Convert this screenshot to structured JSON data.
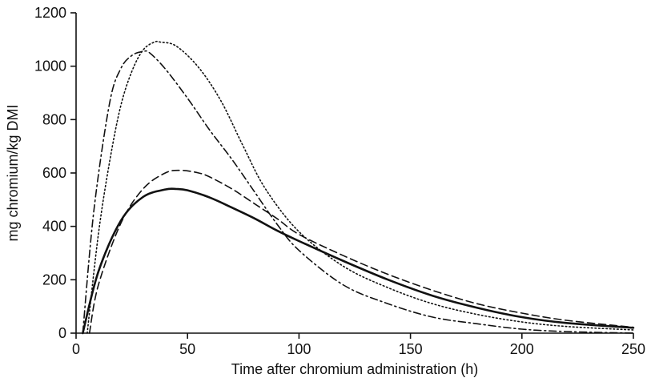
{
  "chart_data": {
    "type": "line",
    "title": "",
    "xlabel": "Time after chromium administration (h)",
    "ylabel": "mg chromium/kg DMI",
    "xlim": [
      0,
      250
    ],
    "ylim": [
      0,
      1200
    ],
    "xticks": [
      0,
      50,
      100,
      150,
      200,
      250
    ],
    "yticks": [
      0,
      200,
      400,
      600,
      800,
      1000,
      1200
    ],
    "grid": false,
    "legend": "none",
    "series": [
      {
        "style": "solid",
        "x": [
          3,
          10,
          20,
          30,
          40,
          45,
          50,
          60,
          70,
          80,
          90,
          100,
          120,
          140,
          160,
          180,
          200,
          220,
          250
        ],
        "y": [
          0,
          230,
          420,
          510,
          538,
          540,
          535,
          508,
          470,
          430,
          385,
          345,
          270,
          200,
          140,
          95,
          60,
          38,
          20
        ]
      },
      {
        "style": "dashed",
        "x": [
          6,
          10,
          20,
          30,
          40,
          47,
          55,
          60,
          70,
          80,
          90,
          100,
          120,
          140,
          160,
          180,
          200,
          220,
          250
        ],
        "y": [
          0,
          180,
          410,
          540,
          600,
          610,
          600,
          585,
          540,
          485,
          430,
          370,
          290,
          220,
          160,
          110,
          75,
          48,
          22
        ]
      },
      {
        "style": "dotted",
        "x": [
          5,
          10,
          15,
          20,
          25,
          30,
          35,
          38,
          45,
          55,
          65,
          75,
          85,
          100,
          120,
          140,
          160,
          180,
          200,
          220,
          250
        ],
        "y": [
          0,
          370,
          640,
          850,
          980,
          1060,
          1090,
          1090,
          1075,
          995,
          870,
          700,
          540,
          380,
          250,
          170,
          110,
          70,
          42,
          25,
          12
        ]
      },
      {
        "style": "dashdot",
        "x": [
          3,
          8,
          15,
          20,
          25,
          30,
          33,
          40,
          50,
          60,
          70,
          80,
          90,
          100,
          120,
          140,
          160,
          180,
          200,
          220,
          250
        ],
        "y": [
          0,
          460,
          860,
          990,
          1040,
          1055,
          1050,
          990,
          880,
          760,
          650,
          530,
          410,
          310,
          180,
          110,
          60,
          35,
          15,
          6,
          0
        ]
      }
    ]
  }
}
